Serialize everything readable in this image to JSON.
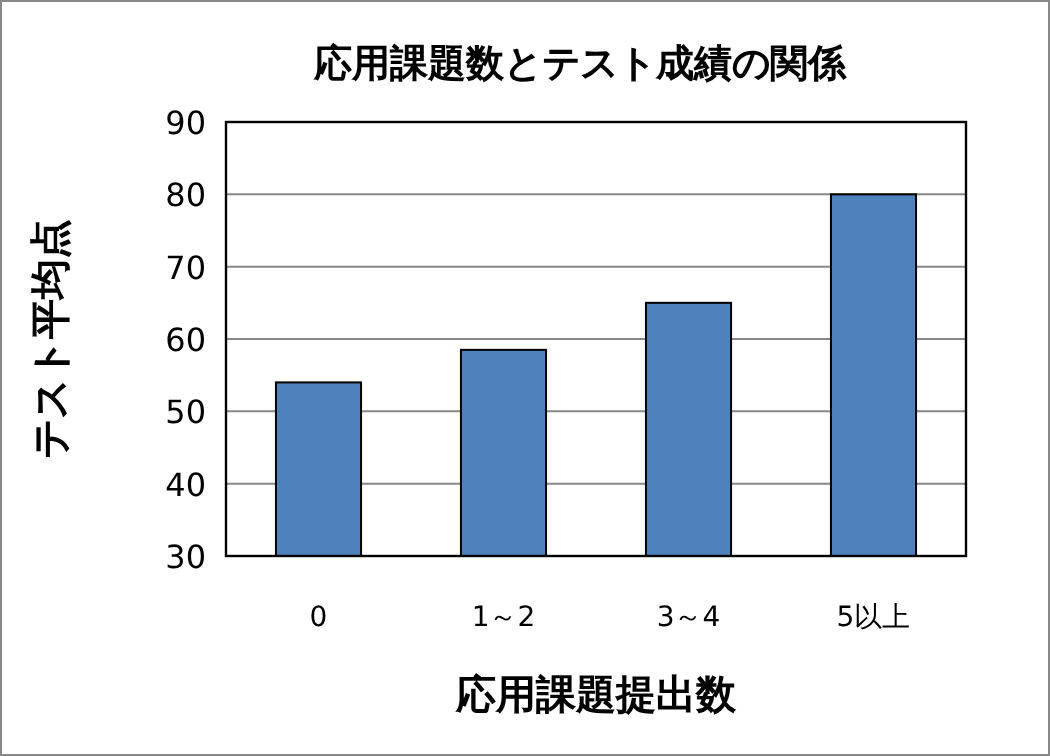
{
  "chart_data": {
    "type": "bar",
    "title": "応用課題数とテスト成績の関係",
    "xlabel": "応用課題提出数",
    "ylabel": "テスト平均点",
    "categories": [
      "0",
      "1～2",
      "3～4",
      "5以上"
    ],
    "values": [
      54,
      58.5,
      65,
      80
    ],
    "color": "#4f81bd",
    "ylim": [
      30,
      90
    ],
    "yticks": [
      30,
      40,
      50,
      60,
      70,
      80,
      90
    ],
    "grid": "y"
  }
}
